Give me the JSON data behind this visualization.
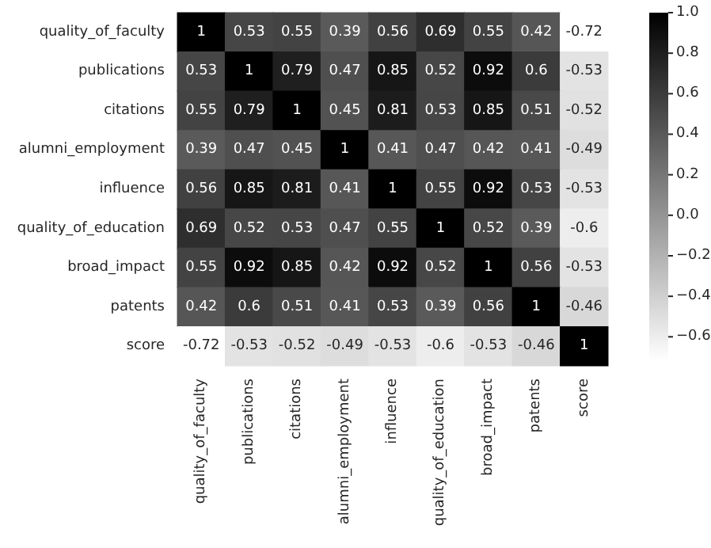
{
  "chart_data": {
    "type": "heatmap",
    "categories": [
      "quality_of_faculty",
      "publications",
      "citations",
      "alumni_employment",
      "influence",
      "quality_of_education",
      "broad_impact",
      "patents",
      "score"
    ],
    "y_categories": [
      "quality_of_faculty",
      "publications",
      "citations",
      "alumni_employment",
      "influence",
      "quality_of_education",
      "broad_impact",
      "patents",
      "score"
    ],
    "cells": [
      [
        1,
        0.53,
        0.55,
        0.39,
        0.56,
        0.69,
        0.55,
        0.42,
        -0.72
      ],
      [
        0.53,
        1,
        0.79,
        0.47,
        0.85,
        0.52,
        0.92,
        0.6,
        -0.53
      ],
      [
        0.55,
        0.79,
        1,
        0.45,
        0.81,
        0.53,
        0.85,
        0.51,
        -0.52
      ],
      [
        0.39,
        0.47,
        0.45,
        1,
        0.41,
        0.47,
        0.42,
        0.41,
        -0.49
      ],
      [
        0.56,
        0.85,
        0.81,
        0.41,
        1,
        0.55,
        0.92,
        0.53,
        -0.53
      ],
      [
        0.69,
        0.52,
        0.53,
        0.47,
        0.55,
        1,
        0.52,
        0.39,
        -0.6
      ],
      [
        0.55,
        0.92,
        0.85,
        0.42,
        0.92,
        0.52,
        1,
        0.56,
        -0.53
      ],
      [
        0.42,
        0.6,
        0.51,
        0.41,
        0.53,
        0.39,
        0.56,
        1,
        -0.46
      ],
      [
        -0.72,
        -0.53,
        -0.52,
        -0.49,
        -0.53,
        -0.6,
        -0.53,
        -0.46,
        1
      ]
    ],
    "colors": [
      "#ffffff",
      "#000000"
    ],
    "clim": [
      -0.72,
      1
    ],
    "cticks": [
      {
        "value": -0.6,
        "label": "−0.6"
      },
      {
        "value": -0.4,
        "label": "−0.4"
      },
      {
        "value": -0.2,
        "label": "−0.2"
      },
      {
        "value": 0,
        "label": "0.0"
      },
      {
        "value": 0.2,
        "label": "0.2"
      },
      {
        "value": 0.4,
        "label": "0.4"
      },
      {
        "value": 0.6,
        "label": "0.6"
      },
      {
        "value": 0.8,
        "label": "0.8"
      },
      {
        "value": 1,
        "label": "1.0"
      }
    ],
    "data_labels": true,
    "grid": false
  }
}
